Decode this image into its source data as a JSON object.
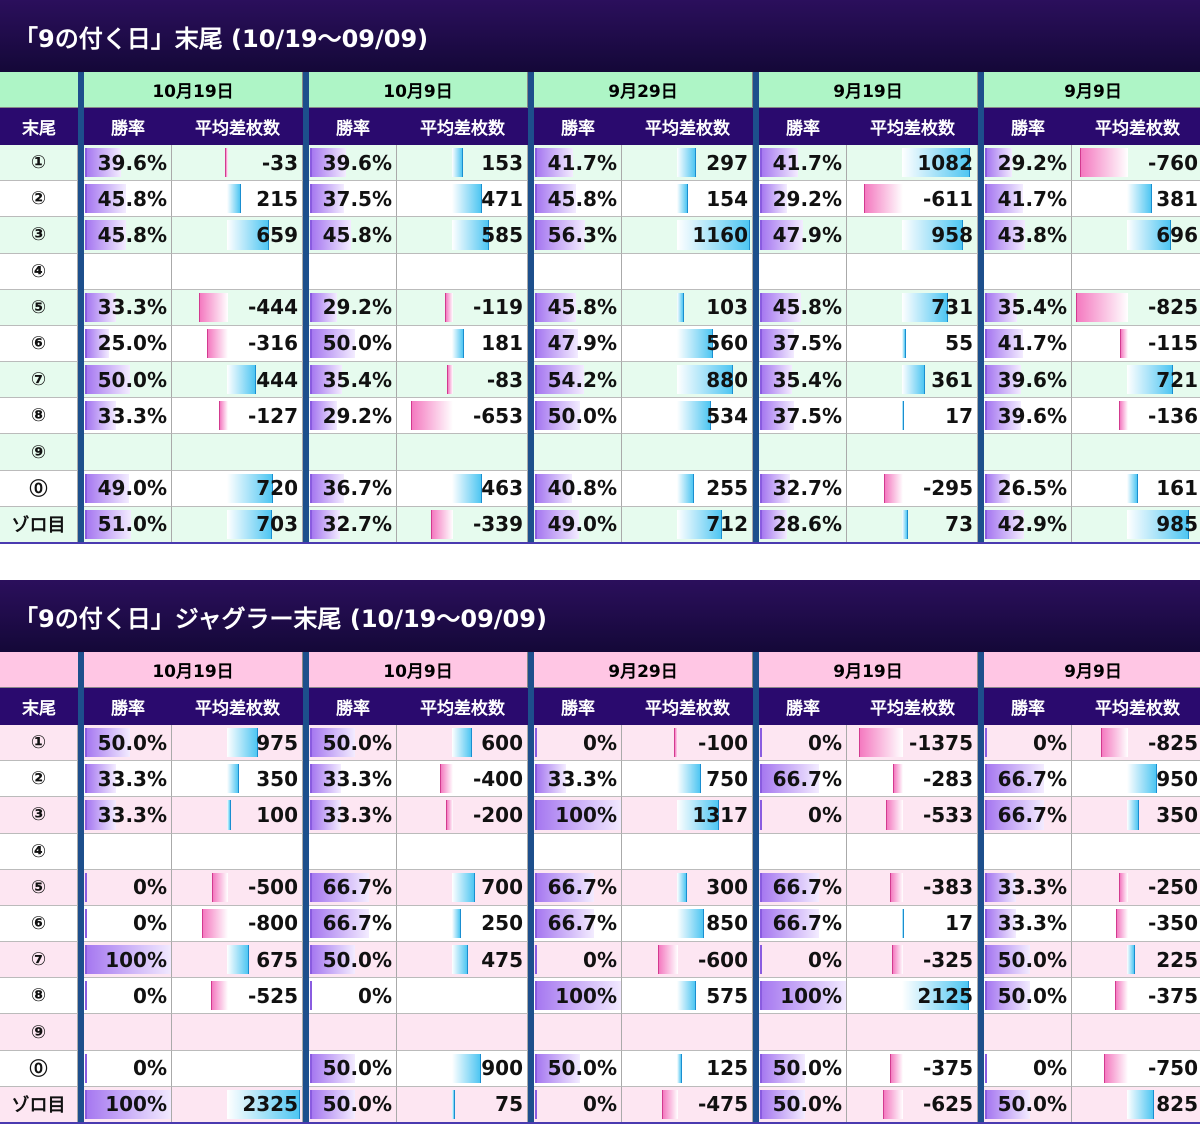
{
  "tables": [
    {
      "title": "「9の付く日」末尾 (10/19～09/09)",
      "dates": [
        "10月19日",
        "10月9日",
        "9月29日",
        "9月19日",
        "9月9日"
      ],
      "columns": [
        "末尾",
        "勝率",
        "平均差枚数"
      ],
      "rows": [
        [
          "①",
          "39.6%",
          -33,
          "39.6%",
          153,
          "41.7%",
          297,
          "41.7%",
          1082,
          "29.2%",
          -760
        ],
        [
          "②",
          "45.8%",
          215,
          "37.5%",
          471,
          "45.8%",
          154,
          "29.2%",
          -611,
          "41.7%",
          381
        ],
        [
          "③",
          "45.8%",
          659,
          "45.8%",
          585,
          "56.3%",
          1160,
          "47.9%",
          958,
          "43.8%",
          696
        ],
        [
          "④",
          null,
          null,
          null,
          null,
          null,
          null,
          null,
          null,
          null,
          null
        ],
        [
          "⑤",
          "33.3%",
          -444,
          "29.2%",
          -119,
          "45.8%",
          103,
          "45.8%",
          731,
          "35.4%",
          -825
        ],
        [
          "⑥",
          "25.0%",
          -316,
          "50.0%",
          181,
          "47.9%",
          560,
          "37.5%",
          55,
          "41.7%",
          -115
        ],
        [
          "⑦",
          "50.0%",
          444,
          "35.4%",
          -83,
          "54.2%",
          880,
          "35.4%",
          361,
          "39.6%",
          721
        ],
        [
          "⑧",
          "33.3%",
          -127,
          "29.2%",
          -653,
          "50.0%",
          534,
          "37.5%",
          17,
          "39.6%",
          -136
        ],
        [
          "⑨",
          null,
          null,
          null,
          null,
          null,
          null,
          null,
          null,
          null,
          null
        ],
        [
          "⓪",
          "49.0%",
          720,
          "36.7%",
          463,
          "40.8%",
          255,
          "32.7%",
          -295,
          "26.5%",
          161
        ],
        [
          "ゾロ目",
          "51.0%",
          703,
          "32.7%",
          -339,
          "49.0%",
          712,
          "28.6%",
          73,
          "42.9%",
          985
        ]
      ]
    },
    {
      "title": "「9の付く日」ジャグラー末尾 (10/19～09/09)",
      "dates": [
        "10月19日",
        "10月9日",
        "9月29日",
        "9月19日",
        "9月9日"
      ],
      "columns": [
        "末尾",
        "勝率",
        "平均差枚数"
      ],
      "rows": [
        [
          "①",
          "50.0%",
          975,
          "50.0%",
          600,
          "0%",
          -100,
          "0%",
          -1375,
          "0%",
          -825
        ],
        [
          "②",
          "33.3%",
          350,
          "33.3%",
          -400,
          "33.3%",
          750,
          "66.7%",
          -283,
          "66.7%",
          950
        ],
        [
          "③",
          "33.3%",
          100,
          "33.3%",
          -200,
          "100%",
          1317,
          "0%",
          -533,
          "66.7%",
          350
        ],
        [
          "④",
          null,
          null,
          null,
          null,
          null,
          null,
          null,
          null,
          null,
          null
        ],
        [
          "⑤",
          "0%",
          -500,
          "66.7%",
          700,
          "66.7%",
          300,
          "66.7%",
          -383,
          "33.3%",
          -250
        ],
        [
          "⑥",
          "0%",
          -800,
          "66.7%",
          250,
          "66.7%",
          850,
          "66.7%",
          17,
          "33.3%",
          -350
        ],
        [
          "⑦",
          "100%",
          675,
          "50.0%",
          475,
          "0%",
          -600,
          "0%",
          -325,
          "50.0%",
          225
        ],
        [
          "⑧",
          "0%",
          -525,
          "0%",
          null,
          "100%",
          575,
          "100%",
          2125,
          "50.0%",
          -375
        ],
        [
          "⑨",
          null,
          null,
          null,
          null,
          null,
          null,
          null,
          null,
          null,
          null
        ],
        [
          "⓪",
          "0%",
          null,
          "50.0%",
          900,
          "50.0%",
          125,
          "50.0%",
          -375,
          "0%",
          -750
        ],
        [
          "ゾロ目",
          "100%",
          2325,
          "50.0%",
          75,
          "0%",
          -475,
          "50.0%",
          -625,
          "50.0%",
          825
        ]
      ]
    }
  ]
}
